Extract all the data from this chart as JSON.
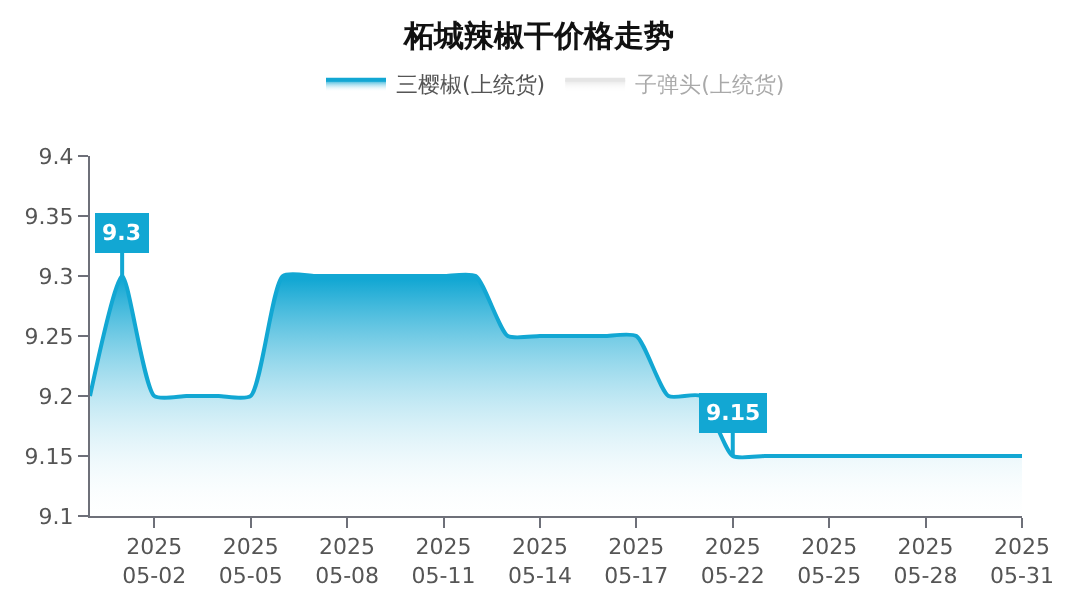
{
  "chart_data": {
    "type": "area",
    "title": "柘城辣椒干价格走势",
    "categories": [
      null,
      null,
      "2025\n05-02",
      null,
      null,
      "2025\n05-05",
      null,
      null,
      "2025\n05-08",
      null,
      null,
      "2025\n05-11",
      null,
      null,
      "2025\n05-14",
      null,
      null,
      "2025\n05-17",
      null,
      null,
      "2025\n05-22",
      null,
      null,
      "2025\n05-25",
      null,
      null,
      "2025\n05-28",
      null,
      null,
      "2025\n05-31"
    ],
    "series": [
      {
        "name": "三樱椒(上统货)",
        "color": "#12a7d3",
        "values": [
          9.2,
          9.3,
          9.2,
          9.2,
          9.2,
          9.2,
          9.3,
          9.3,
          9.3,
          9.3,
          9.3,
          9.3,
          9.3,
          9.25,
          9.25,
          9.25,
          9.25,
          9.25,
          9.2,
          9.2,
          9.15,
          9.15,
          9.15,
          9.15,
          9.15,
          9.15,
          9.15,
          9.15,
          9.15,
          9.15
        ],
        "value_labels": [
          null,
          "9.3",
          null,
          null,
          null,
          null,
          null,
          null,
          null,
          null,
          null,
          null,
          null,
          null,
          null,
          null,
          null,
          null,
          null,
          null,
          "9.15",
          null,
          null,
          null,
          null,
          null,
          null,
          null,
          null,
          null
        ]
      },
      {
        "name": "子弹头(上统货)",
        "color": "#cccccc",
        "values": [
          null,
          null,
          null,
          null,
          null,
          null,
          null,
          null,
          null,
          null,
          null,
          null,
          null,
          null,
          null,
          null,
          null,
          null,
          null,
          null,
          null,
          null,
          null,
          null,
          null,
          null,
          null,
          null,
          null,
          null
        ]
      }
    ],
    "ylim": [
      9.1,
      9.4
    ],
    "yticks": [
      9.1,
      9.15,
      9.2,
      9.25,
      9.3,
      9.35,
      9.4
    ],
    "legend": "top"
  }
}
